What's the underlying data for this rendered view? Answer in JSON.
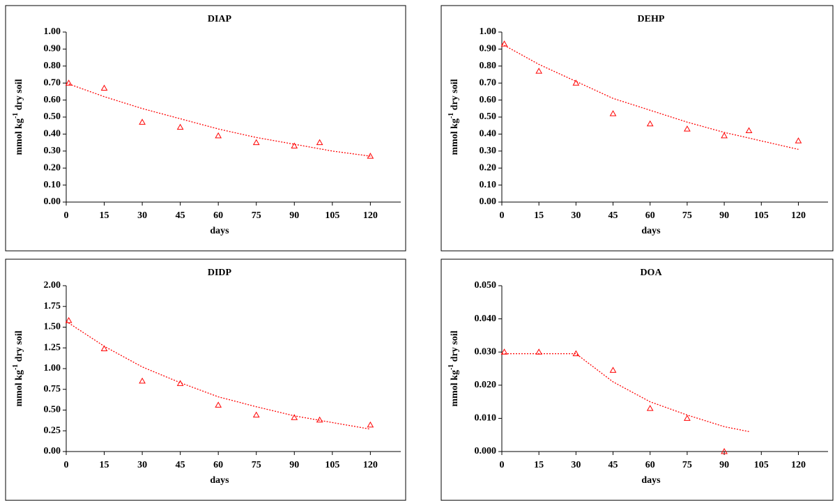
{
  "chart_data": [
    {
      "type": "scatter",
      "title": "DIAP",
      "x_label": "days",
      "y_label": {
        "text": "mmol kg",
        "sup": "-1",
        "rest": " dry soil"
      },
      "x": [
        1,
        15,
        30,
        45,
        60,
        75,
        90,
        100,
        120
      ],
      "series": [
        {
          "color": "#ff0000",
          "marker": "triangle",
          "values": [
            0.7,
            0.67,
            0.47,
            0.44,
            0.39,
            0.35,
            0.33,
            0.35,
            0.27
          ]
        }
      ],
      "trend": {
        "color": "#ff0000",
        "x": [
          0,
          15,
          30,
          45,
          60,
          75,
          90,
          105,
          120
        ],
        "values": [
          0.7,
          0.62,
          0.55,
          0.49,
          0.43,
          0.38,
          0.34,
          0.3,
          0.27
        ]
      },
      "xlim": [
        0,
        132
      ],
      "xticks": [
        0,
        15,
        30,
        45,
        60,
        75,
        90,
        105,
        120
      ],
      "ylim": [
        0,
        1
      ],
      "yticks": [
        {
          "value": 0,
          "label": "0.00"
        },
        {
          "value": 0.1,
          "label": "0.10"
        },
        {
          "value": 0.2,
          "label": "0.20"
        },
        {
          "value": 0.3,
          "label": "0.30"
        },
        {
          "value": 0.4,
          "label": "0.40"
        },
        {
          "value": 0.5,
          "label": "0.50"
        },
        {
          "value": 0.6,
          "label": "0.60"
        },
        {
          "value": 0.7,
          "label": "0.70"
        },
        {
          "value": 0.8,
          "label": "0.80"
        },
        {
          "value": 0.9,
          "label": "0.90"
        },
        {
          "value": 1,
          "label": "1.00"
        }
      ]
    },
    {
      "type": "scatter",
      "title": "DEHP",
      "x_label": "days",
      "y_label": {
        "text": "mmol kg",
        "sup": "-1",
        "rest": " dry soil"
      },
      "x": [
        1,
        15,
        30,
        45,
        60,
        75,
        90,
        100,
        120
      ],
      "series": [
        {
          "color": "#ff0000",
          "marker": "triangle",
          "values": [
            0.93,
            0.77,
            0.7,
            0.52,
            0.46,
            0.43,
            0.39,
            0.42,
            0.36
          ]
        }
      ],
      "trend": {
        "color": "#ff0000",
        "x": [
          0,
          15,
          30,
          45,
          60,
          75,
          90,
          105,
          120
        ],
        "values": [
          0.93,
          0.81,
          0.71,
          0.61,
          0.54,
          0.47,
          0.41,
          0.36,
          0.31
        ]
      },
      "xlim": [
        0,
        132
      ],
      "xticks": [
        0,
        15,
        30,
        45,
        60,
        75,
        90,
        105,
        120
      ],
      "ylim": [
        0,
        1
      ],
      "yticks": [
        {
          "value": 0,
          "label": "0.00"
        },
        {
          "value": 0.1,
          "label": "0.10"
        },
        {
          "value": 0.2,
          "label": "0.20"
        },
        {
          "value": 0.3,
          "label": "0.30"
        },
        {
          "value": 0.4,
          "label": "0.40"
        },
        {
          "value": 0.5,
          "label": "0.50"
        },
        {
          "value": 0.6,
          "label": "0.60"
        },
        {
          "value": 0.7,
          "label": "0.70"
        },
        {
          "value": 0.8,
          "label": "0.80"
        },
        {
          "value": 0.9,
          "label": "0.90"
        },
        {
          "value": 1,
          "label": "1.00"
        }
      ]
    },
    {
      "type": "scatter",
      "title": "DIDP",
      "x_label": "days",
      "y_label": {
        "text": "mmol kg",
        "sup": "-1",
        "rest": " dry soil"
      },
      "x": [
        1,
        15,
        30,
        45,
        60,
        75,
        90,
        100,
        120
      ],
      "series": [
        {
          "color": "#ff0000",
          "marker": "triangle",
          "values": [
            1.58,
            1.24,
            0.85,
            0.82,
            0.56,
            0.44,
            0.41,
            0.38,
            0.32
          ]
        }
      ],
      "trend": {
        "color": "#ff0000",
        "x": [
          0,
          15,
          30,
          45,
          60,
          75,
          90,
          105,
          120
        ],
        "values": [
          1.57,
          1.27,
          1.02,
          0.83,
          0.66,
          0.54,
          0.43,
          0.35,
          0.27
        ]
      },
      "xlim": [
        0,
        132
      ],
      "xticks": [
        0,
        15,
        30,
        45,
        60,
        75,
        90,
        105,
        120
      ],
      "ylim": [
        0,
        2
      ],
      "yticks": [
        {
          "value": 0,
          "label": "0.00"
        },
        {
          "value": 0.25,
          "label": "0.25"
        },
        {
          "value": 0.5,
          "label": "0.50"
        },
        {
          "value": 0.75,
          "label": "0.75"
        },
        {
          "value": 1,
          "label": "1.00"
        },
        {
          "value": 1.25,
          "label": "1.25"
        },
        {
          "value": 1.5,
          "label": "1.50"
        },
        {
          "value": 1.75,
          "label": "1.75"
        },
        {
          "value": 2,
          "label": "2.00"
        }
      ]
    },
    {
      "type": "scatter",
      "title": "DOA",
      "x_label": "days",
      "y_label": {
        "text": "mmol kg",
        "sup": "-1",
        "rest": " dry soil"
      },
      "x": [
        1,
        15,
        30,
        45,
        60,
        75,
        90
      ],
      "series": [
        {
          "color": "#ff0000",
          "marker": "triangle",
          "values": [
            0.03,
            0.03,
            0.0295,
            0.0245,
            0.013,
            0.01,
            0.0
          ]
        }
      ],
      "trend": {
        "color": "#ff0000",
        "x": [
          0,
          15,
          30,
          45,
          60,
          75,
          90,
          100
        ],
        "values": [
          0.0295,
          0.0295,
          0.0295,
          0.021,
          0.015,
          0.011,
          0.0075,
          0.006
        ]
      },
      "xlim": [
        0,
        132
      ],
      "xticks": [
        0,
        15,
        30,
        45,
        60,
        75,
        90,
        105,
        120
      ],
      "ylim": [
        0,
        0.05
      ],
      "yticks": [
        {
          "value": 0,
          "label": "0.000"
        },
        {
          "value": 0.01,
          "label": "0.010"
        },
        {
          "value": 0.02,
          "label": "0.020"
        },
        {
          "value": 0.03,
          "label": "0.030"
        },
        {
          "value": 0.04,
          "label": "0.040"
        },
        {
          "value": 0.05,
          "label": "0.050"
        }
      ]
    }
  ]
}
